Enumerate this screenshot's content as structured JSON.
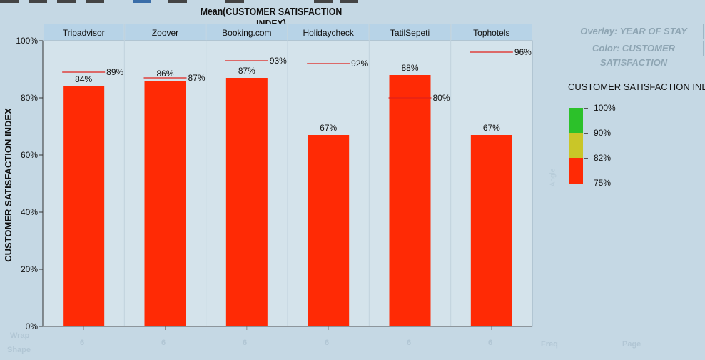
{
  "title": "Mean(CUSTOMER SATISFACTION INDEX)",
  "legend": {
    "overlay_label": "Overlay: YEAR OF STAY",
    "color_label": "Color: CUSTOMER SATISFACTION",
    "scale_title": "CUSTOMER SATISFACTION INDEX",
    "stops": [
      {
        "label": "100%",
        "color": "#2cc12a"
      },
      {
        "label": "90%",
        "color": "#c9c628"
      },
      {
        "label": "82%",
        "color": "#ff2a05"
      },
      {
        "label": "75%",
        "color": ""
      }
    ],
    "size_ghost": "Size",
    "angle_ghost": "Angle"
  },
  "bottom": {
    "wrap_label": "Wrap",
    "shape_label": "Shape",
    "freq_label": "Freq",
    "page_label": "Page",
    "shape_values": [
      "6",
      "6",
      "6",
      "6",
      "6",
      "6"
    ]
  },
  "chart_data": {
    "type": "bar",
    "title": "Mean(CUSTOMER SATISFACTION INDEX)",
    "xlabel": "",
    "ylabel": "CUSTOMER SATISFACTION INDEX",
    "ylim": [
      0,
      100
    ],
    "yticks": [
      "0%",
      "20%",
      "40%",
      "60%",
      "80%",
      "100%"
    ],
    "grid": false,
    "categories": [
      "Tripadvisor",
      "Zoover",
      "Booking.com",
      "Holidaycheck",
      "TatilSepeti",
      "Tophotels"
    ],
    "series": [
      {
        "values": [
          84,
          86,
          87,
          67,
          88,
          67
        ],
        "labels": [
          "84%",
          "86%",
          "87%",
          "67%",
          "88%",
          "67%"
        ],
        "color": "#ff2a05"
      },
      {
        "values": [
          89,
          87,
          93,
          92,
          80,
          96
        ],
        "labels": [
          "89%",
          "87%",
          "93%",
          "92%",
          "80%",
          "96%"
        ],
        "color": "#e0201a"
      }
    ]
  }
}
